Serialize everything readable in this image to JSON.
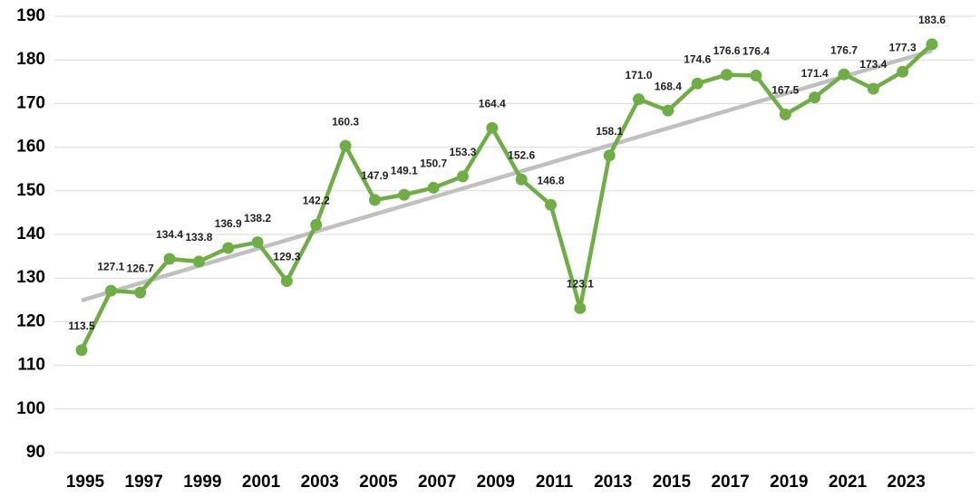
{
  "chart_data": {
    "type": "line",
    "x": [
      1995,
      1996,
      1997,
      1998,
      1999,
      2000,
      2001,
      2002,
      2003,
      2004,
      2005,
      2006,
      2007,
      2008,
      2009,
      2010,
      2011,
      2012,
      2013,
      2014,
      2015,
      2016,
      2017,
      2018,
      2019,
      2020,
      2021,
      2022,
      2023,
      2024
    ],
    "series": [
      {
        "color": "#70ad47",
        "values": [
          113.5,
          127.1,
          126.7,
          134.4,
          133.8,
          136.9,
          138.2,
          129.3,
          142.2,
          160.3,
          147.9,
          149.1,
          150.7,
          153.3,
          164.4,
          152.6,
          146.8,
          123.1,
          158.1,
          171.0,
          168.4,
          174.6,
          176.6,
          176.4,
          167.5,
          171.4,
          176.7,
          173.4,
          177.3,
          183.6
        ],
        "value_labels": [
          "113.5",
          "127.1",
          "126.7",
          "134.4",
          "133.8",
          "136.9",
          "138.2",
          "129.3",
          "142.2",
          "160.3",
          "147.9",
          "149.1",
          "150.7",
          "153.3",
          "164.4",
          "152.6",
          "146.8",
          "123.1",
          "158.1",
          "171.0",
          "168.4",
          "174.6",
          "176.6",
          "176.4",
          "167.5",
          "171.4",
          "176.7",
          "173.4",
          "177.3",
          "183.6"
        ]
      }
    ],
    "trendline": {
      "color": "#c0c0c0"
    },
    "xlim": [
      1995,
      2024
    ],
    "xticks": [
      1995,
      1997,
      1999,
      2001,
      2003,
      2005,
      2007,
      2009,
      2011,
      2013,
      2015,
      2017,
      2019,
      2021,
      2023
    ],
    "ylim": [
      90,
      190
    ],
    "yticks": [
      90,
      100,
      110,
      120,
      130,
      140,
      150,
      160,
      170,
      180,
      190
    ],
    "grid": true
  }
}
